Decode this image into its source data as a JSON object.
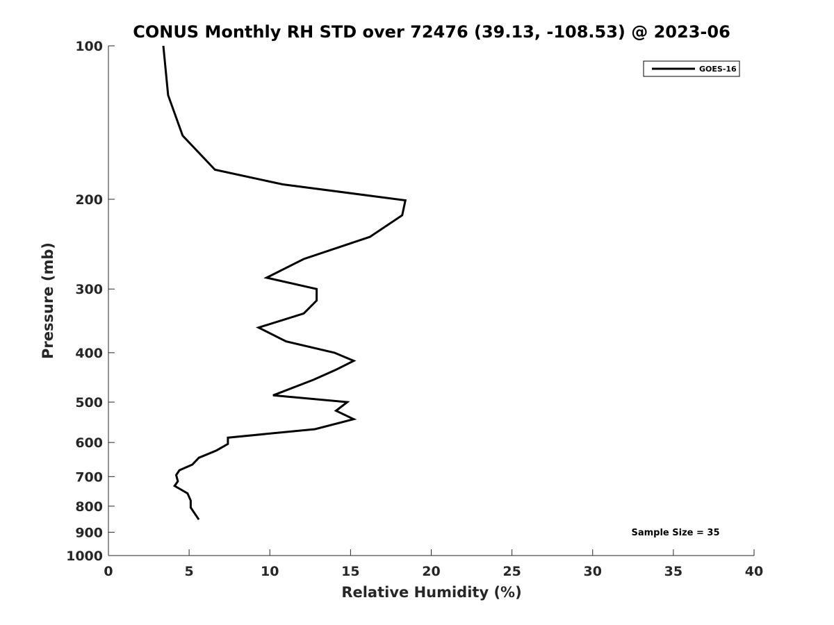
{
  "chart_data": {
    "type": "line",
    "title": "CONUS Monthly RH STD over 72476 (39.13, -108.53) @ 2023-06",
    "xlabel": "Relative Humidity (%)",
    "ylabel": "Pressure (mb)",
    "xlim": [
      0,
      40
    ],
    "ylim": [
      100,
      1000
    ],
    "y_scale": "log",
    "y_reversed": true,
    "grid": false,
    "legend_position": "top-right",
    "x_ticks": [
      0,
      5,
      10,
      15,
      20,
      25,
      30,
      35,
      40
    ],
    "y_ticks": [
      100,
      200,
      300,
      400,
      500,
      600,
      700,
      800,
      900,
      1000
    ],
    "series": [
      {
        "name": "GOES-16",
        "color": "#000000",
        "points": [
          {
            "x": 3.4,
            "y": 100
          },
          {
            "x": 3.7,
            "y": 125
          },
          {
            "x": 4.6,
            "y": 150
          },
          {
            "x": 6.6,
            "y": 175
          },
          {
            "x": 10.8,
            "y": 187
          },
          {
            "x": 18.4,
            "y": 201
          },
          {
            "x": 18.2,
            "y": 215
          },
          {
            "x": 16.2,
            "y": 237
          },
          {
            "x": 12.1,
            "y": 262
          },
          {
            "x": 9.8,
            "y": 285
          },
          {
            "x": 12.9,
            "y": 300
          },
          {
            "x": 12.9,
            "y": 316
          },
          {
            "x": 12.1,
            "y": 335
          },
          {
            "x": 9.3,
            "y": 357
          },
          {
            "x": 11.0,
            "y": 380
          },
          {
            "x": 14.0,
            "y": 400
          },
          {
            "x": 15.2,
            "y": 415
          },
          {
            "x": 14.1,
            "y": 432
          },
          {
            "x": 12.7,
            "y": 452
          },
          {
            "x": 10.2,
            "y": 485
          },
          {
            "x": 14.8,
            "y": 500
          },
          {
            "x": 14.1,
            "y": 520
          },
          {
            "x": 15.2,
            "y": 540
          },
          {
            "x": 12.8,
            "y": 565
          },
          {
            "x": 7.4,
            "y": 587
          },
          {
            "x": 7.4,
            "y": 604
          },
          {
            "x": 6.7,
            "y": 622
          },
          {
            "x": 5.6,
            "y": 643
          },
          {
            "x": 5.2,
            "y": 663
          },
          {
            "x": 4.4,
            "y": 680
          },
          {
            "x": 4.2,
            "y": 695
          },
          {
            "x": 4.3,
            "y": 715
          },
          {
            "x": 4.1,
            "y": 730
          },
          {
            "x": 4.9,
            "y": 755
          },
          {
            "x": 5.1,
            "y": 780
          },
          {
            "x": 5.1,
            "y": 805
          },
          {
            "x": 5.6,
            "y": 850
          }
        ]
      }
    ],
    "annotation": "Sample Size = 35"
  }
}
